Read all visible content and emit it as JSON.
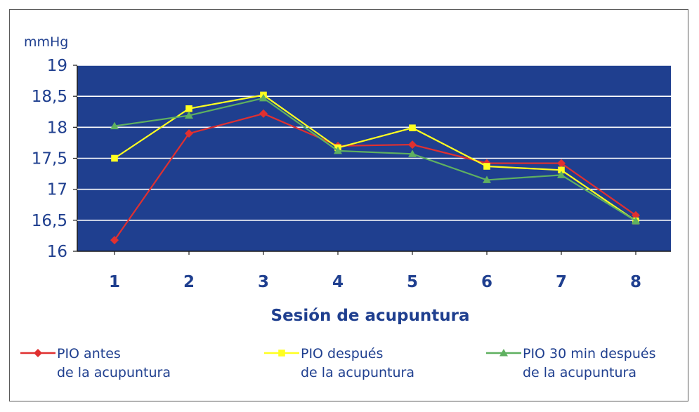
{
  "chart_data": {
    "type": "line",
    "ylabel": "mmHg",
    "xlabel": "Sesión de acupuntura",
    "ylim": [
      16,
      19
    ],
    "yticks": [
      16,
      16.5,
      17,
      17.5,
      18,
      18.5,
      19
    ],
    "ytick_labels": [
      "16",
      "16,5",
      "17",
      "17,5",
      "18",
      "18,5",
      "19"
    ],
    "categories": [
      "1",
      "2",
      "3",
      "4",
      "5",
      "6",
      "7",
      "8"
    ],
    "grid": true,
    "plot_background": "#1f3f8f",
    "legend_position": "bottom",
    "series": [
      {
        "name_line1": "PIO antes",
        "name_line2": "de la acupuntura",
        "color": "#e03030",
        "marker": "diamond",
        "values": [
          16.18,
          17.9,
          18.22,
          17.7,
          17.72,
          17.42,
          17.42,
          16.58
        ]
      },
      {
        "name_line1": "PIO después",
        "name_line2": "de la acupuntura",
        "color": "#ffff20",
        "marker": "square",
        "values": [
          17.5,
          18.3,
          18.52,
          17.67,
          17.99,
          17.37,
          17.31,
          16.49
        ]
      },
      {
        "name_line1": "PIO 30 min después",
        "name_line2": "de la acupuntura",
        "color": "#5fb060",
        "marker": "triangle",
        "values": [
          18.02,
          18.19,
          18.47,
          17.62,
          17.57,
          17.15,
          17.23,
          16.49
        ]
      }
    ]
  }
}
